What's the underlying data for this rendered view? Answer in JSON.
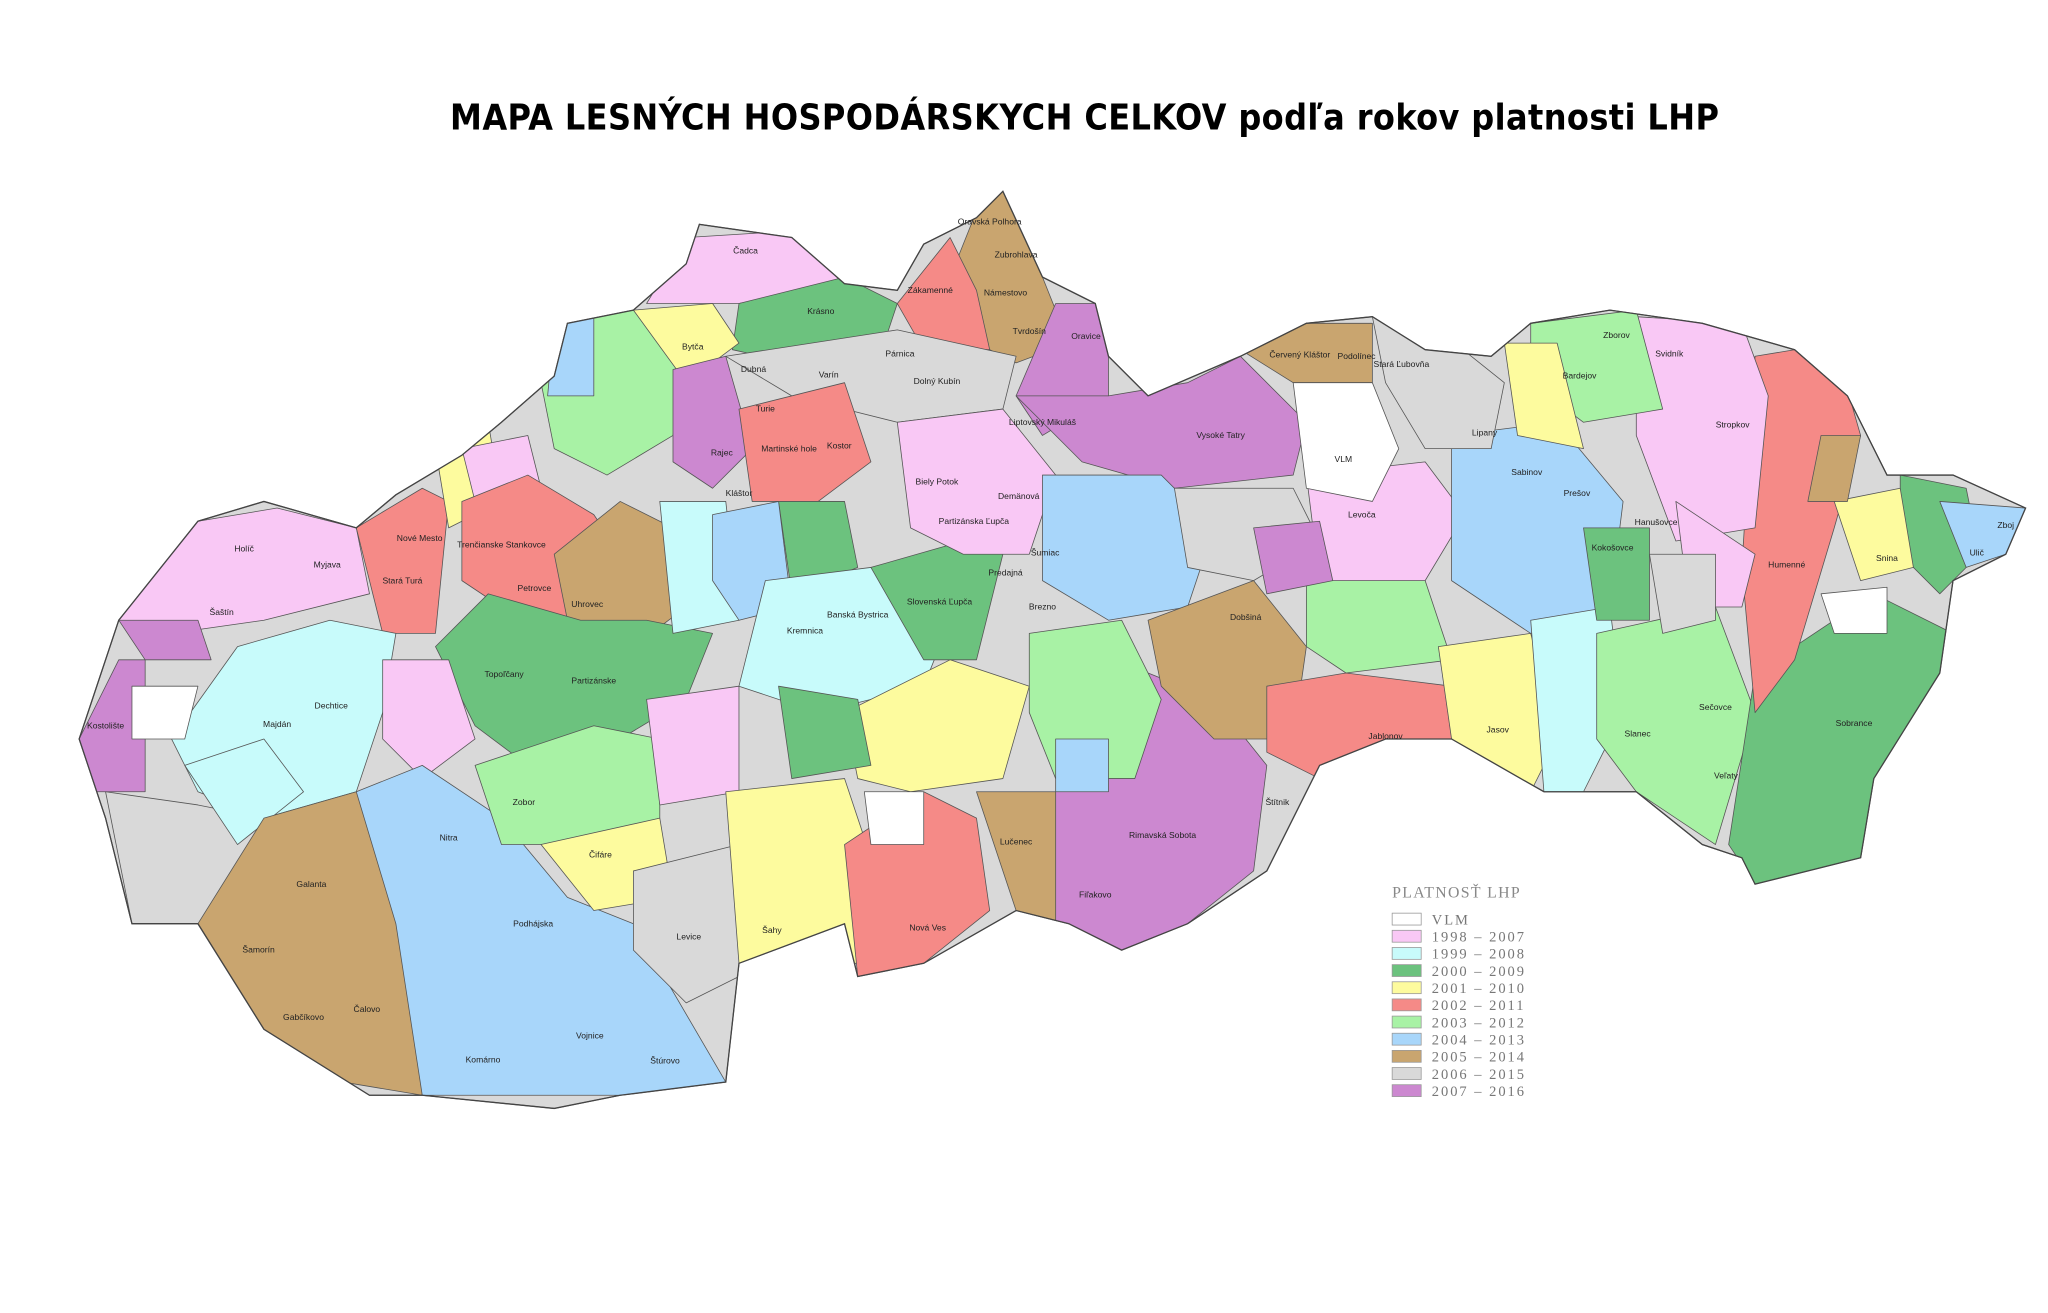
{
  "title": "MAPA LESNÝCH HOSPODÁRSKYCH CELKOV podľa rokov platnosti LHP",
  "legend": {
    "title": "PLATNOSŤ LHP",
    "items": [
      {
        "label": "VLM",
        "color": "#ffffff"
      },
      {
        "label": "1998 – 2007",
        "color": "#f9c8f5"
      },
      {
        "label": "1999 – 2008",
        "color": "#c8fbfb"
      },
      {
        "label": "2000 – 2009",
        "color": "#6cc27e"
      },
      {
        "label": "2001 – 2010",
        "color": "#fdfb9e"
      },
      {
        "label": "2002 – 2011",
        "color": "#f58a87"
      },
      {
        "label": "2003 – 2012",
        "color": "#a8f2a5"
      },
      {
        "label": "2004 – 2013",
        "color": "#a8d6fa"
      },
      {
        "label": "2005 – 2014",
        "color": "#c9a56f"
      },
      {
        "label": "2006 – 2015",
        "color": "#d9d9d9"
      },
      {
        "label": "2007 – 2016",
        "color": "#cc88d0"
      }
    ]
  },
  "district_labels": [
    "Čadca",
    "Krásno",
    "Oravská Polhora",
    "Zubrohlava",
    "Námestovo",
    "Tvrdošín",
    "Zákamenné",
    "Oravice",
    "Párnica",
    "Dolný Kubín",
    "Bytča",
    "Varín",
    "Dubná",
    "Turie",
    "Rajec",
    "Kláštor",
    "Kremnica",
    "Martinské hole",
    "Kostor",
    "Liptovský Mikuláš",
    "Vysoké Tatry",
    "Demänová",
    "Biely Potok",
    "Partizánska Ľupča",
    "Slovenská Ľupča",
    "Banská Bystrica",
    "Brezno",
    "Predajná",
    "Šumiac",
    "Holíč",
    "Myjava",
    "Šaštín",
    "Nové Mesto",
    "Stará Turá",
    "Trenčianske Stankovce",
    "Petrovce",
    "Uhrovec",
    "Topoľčany",
    "Partizánske",
    "Kostolište",
    "Dechtice",
    "Majdán",
    "Galanta",
    "Šamorín",
    "Gabčíkovo",
    "Čalovo",
    "Nitra",
    "Podhájska",
    "Komárno",
    "Vojnice",
    "Štúrovo",
    "Levice",
    "Čifáre",
    "Zobor",
    "Šahy",
    "Nová Ves",
    "Lučenec",
    "Rimavská Sobota",
    "Fiľakovo",
    "Štítnik",
    "Dobšiná",
    "Jablonov",
    "Jasov",
    "Levoča",
    "Prešov",
    "Sabinov",
    "Bardejov",
    "Zborov",
    "Svidník",
    "Stropkov",
    "Humenné",
    "Snina",
    "Ulič",
    "Sobrance",
    "Veľaty",
    "Sečovce",
    "Slanec",
    "Podolínec",
    "Stará Ľubovňa",
    "Červený Kláštor",
    "Lipany",
    "Hanušovce",
    "Kokošovce",
    "Zboj",
    "VLM"
  ]
}
